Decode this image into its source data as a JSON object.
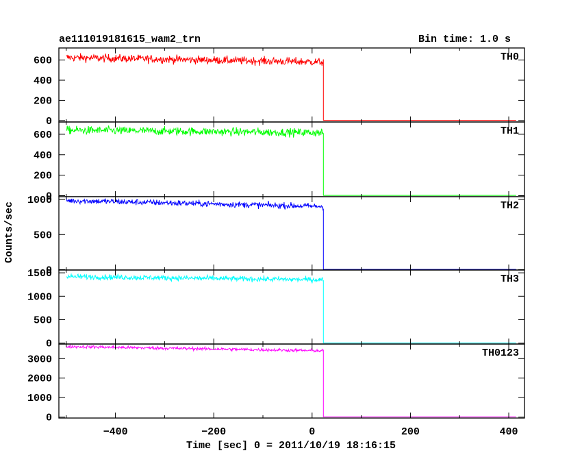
{
  "header": {
    "title": "ae111019181615_wam2_trn",
    "bin_time": "Bin time: 1.0 s"
  },
  "chart_data": {
    "type": "line",
    "xlabel": "Time [sec] 0 = 2011/10/19 18:16:15",
    "ylabel": "Counts/sec",
    "xlim": [
      -515,
      432
    ],
    "x_ticks": [
      -400,
      -200,
      0,
      200,
      400
    ],
    "step_time": 23,
    "panels": [
      {
        "name": "TH0",
        "color": "#ff0000",
        "ylim": [
          -15,
          720
        ],
        "y_ticks": [
          0,
          200,
          400,
          600
        ],
        "level_start": 625,
        "level_end": 580,
        "noise": 28,
        "post_level": 2
      },
      {
        "name": "TH1",
        "color": "#00ff00",
        "ylim": [
          -10,
          720
        ],
        "y_ticks": [
          0,
          200,
          400,
          600
        ],
        "level_start": 640,
        "level_end": 615,
        "noise": 28,
        "post_level": 3
      },
      {
        "name": "TH2",
        "color": "#0000ff",
        "ylim": [
          -5,
          1040
        ],
        "y_ticks": [
          0,
          500,
          1000
        ],
        "level_start": 985,
        "level_end": 900,
        "noise": 30,
        "post_level": 4
      },
      {
        "name": "TH3",
        "color": "#00ffff",
        "ylim": [
          -20,
          1560
        ],
        "y_ticks": [
          0,
          500,
          1000,
          1500
        ],
        "level_start": 1420,
        "level_end": 1350,
        "noise": 40,
        "post_level": 3
      },
      {
        "name": "TH0123",
        "color": "#ff00ff",
        "ylim": [
          -50,
          3750
        ],
        "y_ticks": [
          0,
          1000,
          2000,
          3000
        ],
        "level_start": 3620,
        "level_end": 3400,
        "noise": 55,
        "post_level": 10
      }
    ]
  }
}
